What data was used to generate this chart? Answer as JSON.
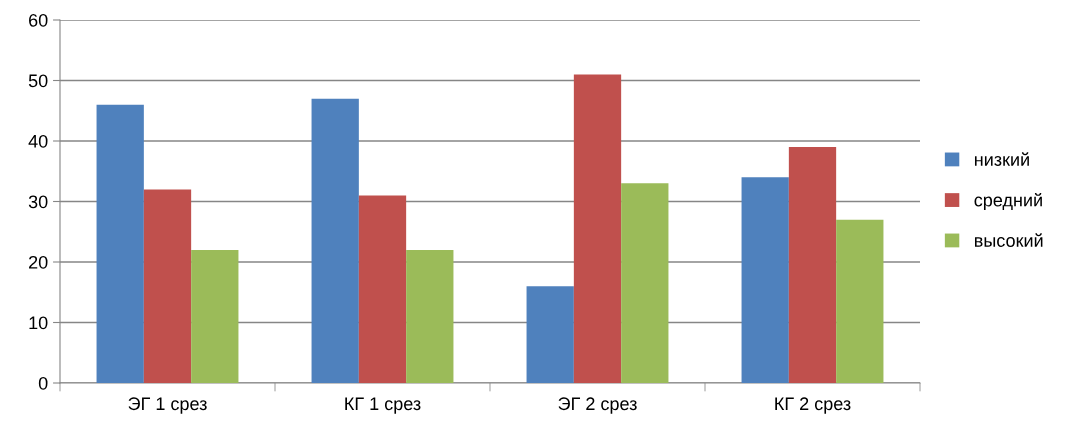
{
  "chart_data": {
    "type": "bar",
    "categories": [
      "ЭГ 1 срез",
      "КГ 1 срез",
      "ЭГ 2 срез",
      "КГ 2 срез"
    ],
    "series": [
      {
        "name": "низкий",
        "color": "#4f81bd",
        "values": [
          46,
          47,
          16,
          34
        ]
      },
      {
        "name": "средний",
        "color": "#c0504d",
        "values": [
          32,
          31,
          51,
          39
        ]
      },
      {
        "name": "высокий",
        "color": "#9bbb59",
        "values": [
          22,
          22,
          33,
          27
        ]
      }
    ],
    "ylim": [
      0,
      60
    ],
    "yticks": [
      0,
      10,
      20,
      30,
      40,
      50,
      60
    ],
    "grid": "y",
    "legend": "right"
  }
}
